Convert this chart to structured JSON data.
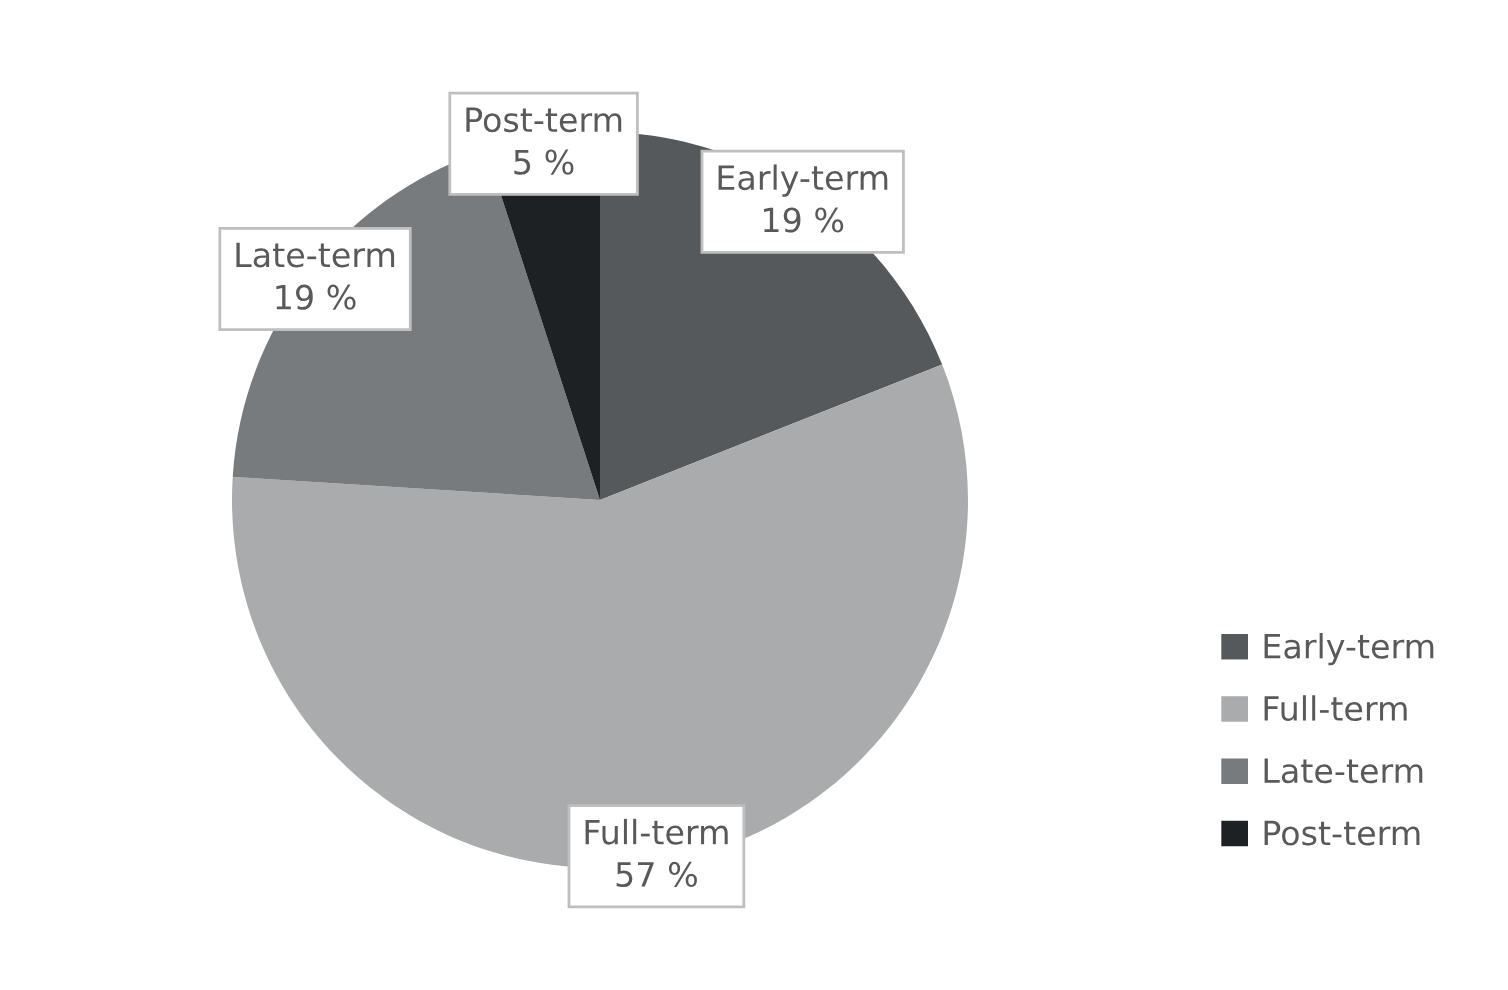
{
  "chart_data": {
    "type": "pie",
    "categories": [
      "Early-term",
      "Full-term",
      "Late-term",
      "Post-term"
    ],
    "values": [
      19,
      57,
      19,
      5
    ],
    "value_labels": [
      "19 %",
      "57 %",
      "19 %",
      "5 %"
    ],
    "colors": [
      "#55595b",
      "#a9abac",
      "#777b7d",
      "#1e2124"
    ],
    "legend": "right"
  }
}
